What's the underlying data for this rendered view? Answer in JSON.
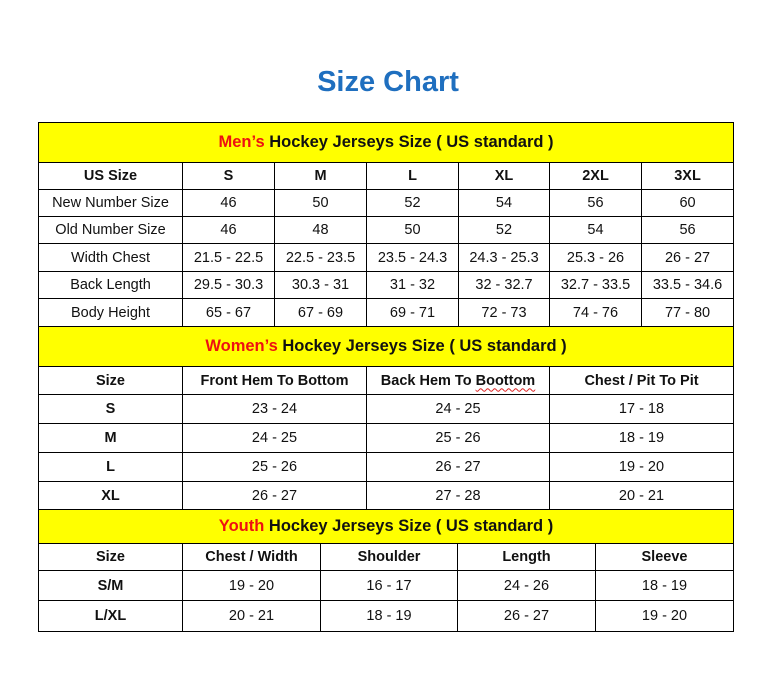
{
  "title": "Size Chart",
  "colors": {
    "title": "#1f6fbf",
    "banner": "#ffff00",
    "highlight": "#ee1111"
  },
  "men": {
    "banner_highlight": "Men’s",
    "banner_rest": " Hockey Jerseys Size ( US standard )",
    "header": [
      "US Size",
      "S",
      "M",
      "L",
      "XL",
      "2XL",
      "3XL"
    ],
    "rows": [
      [
        "New Number Size",
        "46",
        "50",
        "52",
        "54",
        "56",
        "60"
      ],
      [
        "Old Number Size",
        "46",
        "48",
        "50",
        "52",
        "54",
        "56"
      ],
      [
        "Width Chest",
        "21.5 - 22.5",
        "22.5 - 23.5",
        "23.5 - 24.3",
        "24.3 - 25.3",
        "25.3 - 26",
        "26 - 27"
      ],
      [
        "Back Length",
        "29.5 - 30.3",
        "30.3 - 31",
        "31 - 32",
        "32 - 32.7",
        "32.7 - 33.5",
        "33.5 - 34.6"
      ],
      [
        "Body Height",
        "65 - 67",
        "67 - 69",
        "69 - 71",
        "72 - 73",
        "74 - 76",
        "77 - 80"
      ]
    ]
  },
  "women": {
    "banner_highlight": "Women’s",
    "banner_rest": " Hockey Jerseys Size ( US standard )",
    "header": [
      "Size",
      "Front Hem To Bottom",
      "Back Hem To Boottom",
      "Chest / Pit To Pit"
    ],
    "rows": [
      [
        "S",
        "23 - 24",
        "24 - 25",
        "17 - 18"
      ],
      [
        "M",
        "24 - 25",
        "25 - 26",
        "18 - 19"
      ],
      [
        "L",
        "25 - 26",
        "26 - 27",
        "19 - 20"
      ],
      [
        "XL",
        "26 - 27",
        "27 - 28",
        "20 - 21"
      ]
    ]
  },
  "youth": {
    "banner_highlight": "Youth",
    "banner_rest": " Hockey Jerseys Size ( US standard )",
    "header": [
      "Size",
      "Chest / Width",
      "Shoulder",
      "Length",
      "Sleeve"
    ],
    "rows": [
      [
        "S/M",
        "19 - 20",
        "16 - 17",
        "24 - 26",
        "18 - 19"
      ],
      [
        "L/XL",
        "20 - 21",
        "18 - 19",
        "26 - 27",
        "19 - 20"
      ]
    ]
  }
}
